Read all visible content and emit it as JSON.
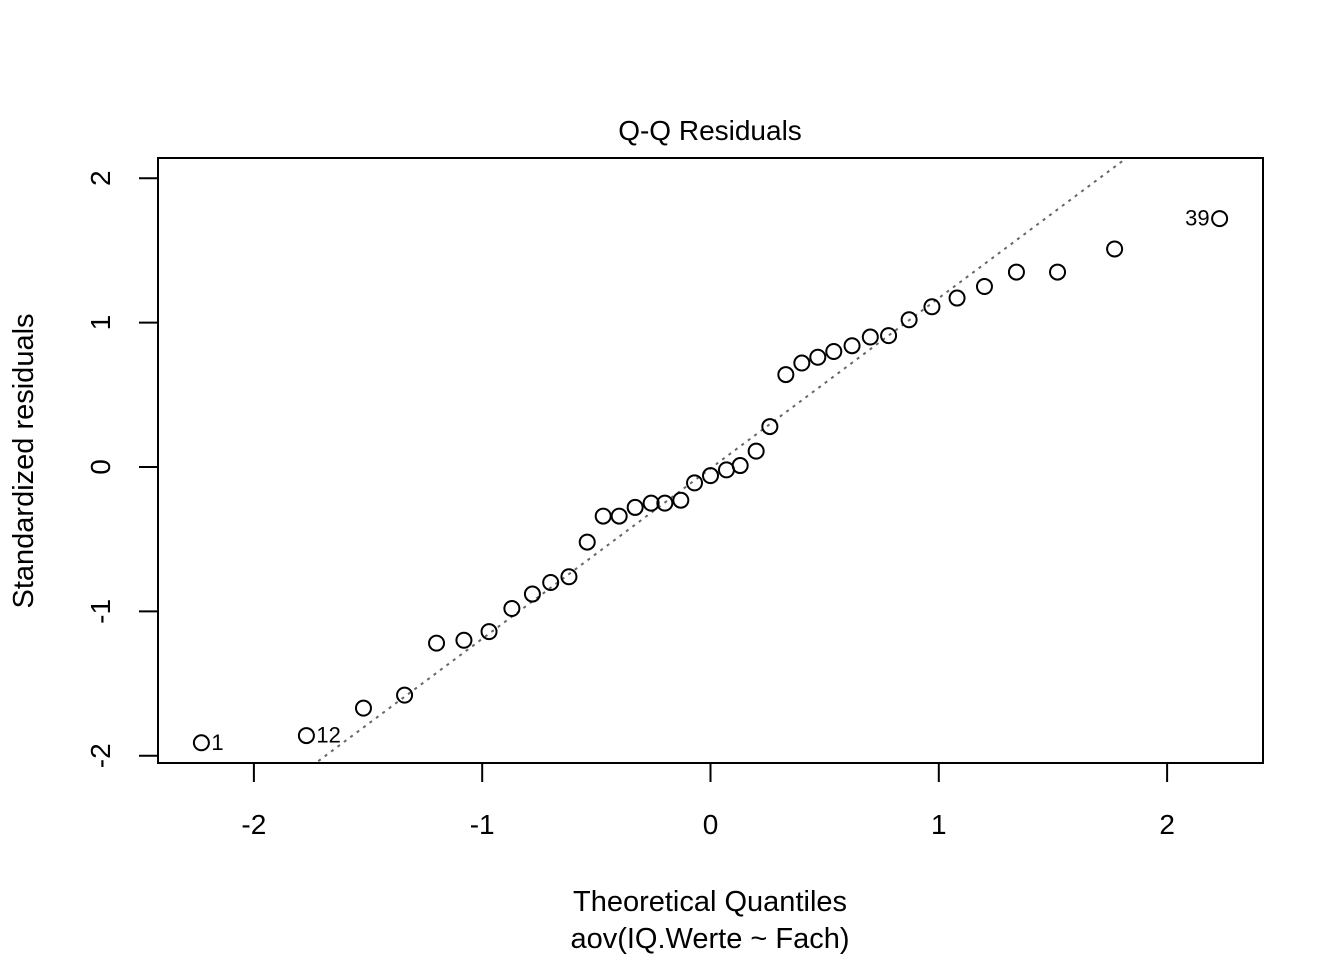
{
  "chart_data": {
    "type": "scatter",
    "title": "Q-Q Residuals",
    "xlabel": "Theoretical Quantiles",
    "subtitle": "aov(IQ.Werte ~ Fach)",
    "ylabel": "Standardized residuals",
    "xlim": [
      -2.42,
      2.42
    ],
    "ylim": [
      -2.05,
      2.14
    ],
    "x_ticks": [
      -2,
      -1,
      0,
      1,
      2
    ],
    "x_tick_labels": [
      "-2",
      "-1",
      "0",
      "1",
      "2"
    ],
    "y_ticks": [
      -2,
      -1,
      0,
      1,
      2
    ],
    "y_tick_labels": [
      "-2",
      "-1",
      "0",
      "1",
      "2"
    ],
    "grid": false,
    "reference_line": {
      "style": "dotted",
      "color": "#666666",
      "slope": 1.18,
      "intercept": -0.01
    },
    "points": [
      {
        "x": -2.23,
        "y": -1.91,
        "label": "1"
      },
      {
        "x": -1.77,
        "y": -1.86,
        "label": "12"
      },
      {
        "x": -1.52,
        "y": -1.67
      },
      {
        "x": -1.34,
        "y": -1.58
      },
      {
        "x": -1.2,
        "y": -1.22
      },
      {
        "x": -1.08,
        "y": -1.2
      },
      {
        "x": -0.97,
        "y": -1.14
      },
      {
        "x": -0.87,
        "y": -0.98
      },
      {
        "x": -0.78,
        "y": -0.88
      },
      {
        "x": -0.7,
        "y": -0.8
      },
      {
        "x": -0.62,
        "y": -0.76
      },
      {
        "x": -0.54,
        "y": -0.52
      },
      {
        "x": -0.47,
        "y": -0.34
      },
      {
        "x": -0.4,
        "y": -0.34
      },
      {
        "x": -0.33,
        "y": -0.28
      },
      {
        "x": -0.26,
        "y": -0.25
      },
      {
        "x": -0.2,
        "y": -0.25
      },
      {
        "x": -0.13,
        "y": -0.23
      },
      {
        "x": -0.07,
        "y": -0.11
      },
      {
        "x": 0.0,
        "y": -0.06
      },
      {
        "x": 0.07,
        "y": -0.02
      },
      {
        "x": 0.13,
        "y": 0.01
      },
      {
        "x": 0.2,
        "y": 0.11
      },
      {
        "x": 0.26,
        "y": 0.28
      },
      {
        "x": 0.33,
        "y": 0.64
      },
      {
        "x": 0.4,
        "y": 0.72
      },
      {
        "x": 0.47,
        "y": 0.76
      },
      {
        "x": 0.54,
        "y": 0.8
      },
      {
        "x": 0.62,
        "y": 0.84
      },
      {
        "x": 0.7,
        "y": 0.9
      },
      {
        "x": 0.78,
        "y": 0.91
      },
      {
        "x": 0.87,
        "y": 1.02
      },
      {
        "x": 0.97,
        "y": 1.11
      },
      {
        "x": 1.08,
        "y": 1.17
      },
      {
        "x": 1.2,
        "y": 1.25
      },
      {
        "x": 1.34,
        "y": 1.35
      },
      {
        "x": 1.52,
        "y": 1.35
      },
      {
        "x": 1.77,
        "y": 1.51
      },
      {
        "x": 2.23,
        "y": 1.72,
        "label": "39"
      }
    ]
  }
}
